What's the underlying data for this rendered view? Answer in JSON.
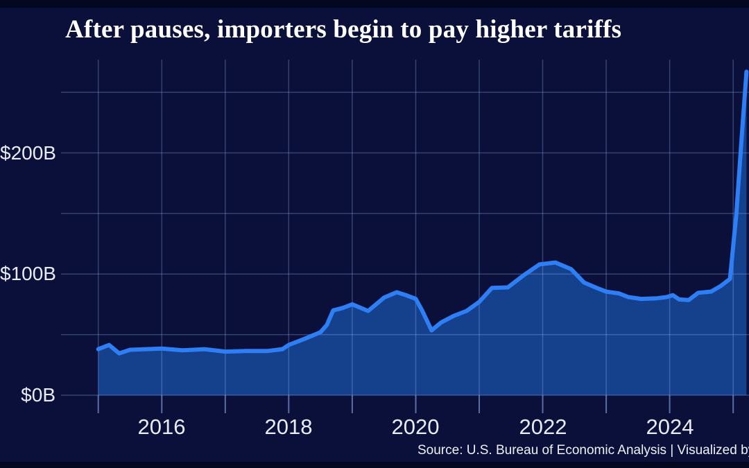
{
  "chart": {
    "title": "After pauses, importers begin to pay higher tariffs",
    "source_text": "Source: U.S. Bureau of Economic Analysis | Visualized by I"
  },
  "colors": {
    "outer_background": "#03071f",
    "card_background": "#0a1039",
    "gridline": "rgba(140,175,240,0.32)",
    "axis_tick": "rgba(140,175,240,0.60)",
    "area_fill": "#15418c",
    "line": "#2e7ff5",
    "title_text": "#ffffff",
    "label_text": "#e9ecf4"
  },
  "chart_data": {
    "type": "area",
    "title": "After pauses, importers begin to pay higher tariffs",
    "xlabel": "",
    "ylabel": "",
    "x_domain": [
      2015,
      2025.25
    ],
    "y_domain": [
      0,
      270
    ],
    "grid": true,
    "x_gridline_years": [
      2015,
      2016,
      2017,
      2018,
      2019,
      2020,
      2021,
      2022,
      2023,
      2024,
      2025
    ],
    "y_gridline_values": [
      0,
      50,
      100,
      150,
      200,
      250
    ],
    "x_ticks": [
      {
        "label": "2016",
        "year": 2016
      },
      {
        "label": "2018",
        "year": 2018
      },
      {
        "label": "2020",
        "year": 2020
      },
      {
        "label": "2022",
        "year": 2022
      },
      {
        "label": "2024",
        "year": 2024
      }
    ],
    "y_ticks": [
      {
        "label": "$0B",
        "value": 0
      },
      {
        "label": "$100B",
        "value": 100
      },
      {
        "label": "$200B",
        "value": 200
      }
    ],
    "series": [
      {
        "unit": "billions_usd",
        "points": [
          [
            2015.0,
            38.0
          ],
          [
            2015.17,
            41.5
          ],
          [
            2015.33,
            34.5
          ],
          [
            2015.5,
            37.5
          ],
          [
            2015.75,
            38.0
          ],
          [
            2016.0,
            38.5
          ],
          [
            2016.33,
            37.0
          ],
          [
            2016.67,
            38.0
          ],
          [
            2017.0,
            36.0
          ],
          [
            2017.33,
            36.5
          ],
          [
            2017.67,
            36.5
          ],
          [
            2017.9,
            38.0
          ],
          [
            2018.0,
            41.5
          ],
          [
            2018.25,
            46.5
          ],
          [
            2018.5,
            52.0
          ],
          [
            2018.6,
            58.0
          ],
          [
            2018.7,
            70.0
          ],
          [
            2018.85,
            72.0
          ],
          [
            2019.0,
            75.0
          ],
          [
            2019.25,
            69.5
          ],
          [
            2019.5,
            80.5
          ],
          [
            2019.7,
            85.0
          ],
          [
            2019.85,
            82.5
          ],
          [
            2020.0,
            79.5
          ],
          [
            2020.1,
            70.0
          ],
          [
            2020.25,
            53.5
          ],
          [
            2020.4,
            60.0
          ],
          [
            2020.6,
            65.5
          ],
          [
            2020.8,
            69.5
          ],
          [
            2021.0,
            77.0
          ],
          [
            2021.2,
            88.5
          ],
          [
            2021.45,
            89.0
          ],
          [
            2021.7,
            99.0
          ],
          [
            2021.95,
            108.0
          ],
          [
            2022.2,
            109.5
          ],
          [
            2022.45,
            104.0
          ],
          [
            2022.65,
            93.0
          ],
          [
            2022.85,
            88.5
          ],
          [
            2023.0,
            85.5
          ],
          [
            2023.2,
            84.0
          ],
          [
            2023.35,
            81.0
          ],
          [
            2023.55,
            79.5
          ],
          [
            2023.8,
            80.0
          ],
          [
            2023.95,
            81.0
          ],
          [
            2024.05,
            82.5
          ],
          [
            2024.15,
            79.0
          ],
          [
            2024.3,
            78.5
          ],
          [
            2024.45,
            84.5
          ],
          [
            2024.65,
            85.5
          ],
          [
            2024.8,
            90.0
          ],
          [
            2024.95,
            96.0
          ],
          [
            2025.05,
            150.0
          ],
          [
            2025.13,
            210.0
          ],
          [
            2025.21,
            267.0
          ]
        ]
      }
    ]
  }
}
